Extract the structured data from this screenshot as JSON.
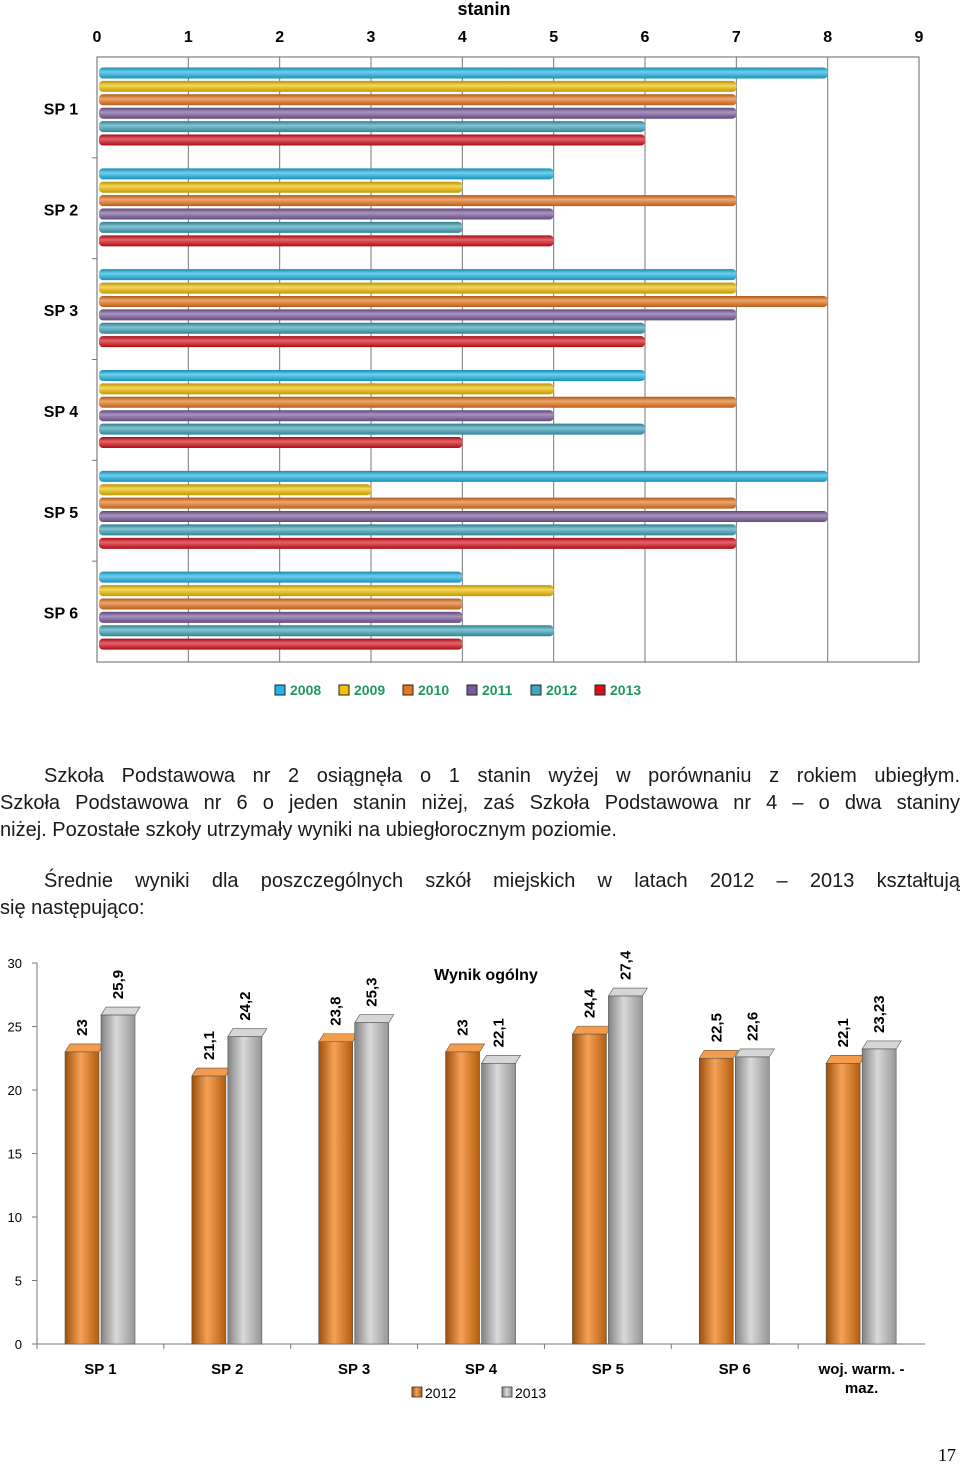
{
  "chart_data": [
    {
      "type": "bar",
      "orientation": "horizontal",
      "title": "stanin",
      "categories": [
        "SP 1",
        "SP 2",
        "SP 3",
        "SP 4",
        "SP 5",
        "SP 6"
      ],
      "x_ticks": [
        "0",
        "1",
        "2",
        "3",
        "4",
        "5",
        "6",
        "7",
        "8",
        "9"
      ],
      "xlim": [
        0,
        9
      ],
      "grid": true,
      "legend": "bottom",
      "series": [
        {
          "name": "2008",
          "color": "#1fb6e8",
          "values": [
            8,
            5,
            7,
            6,
            8,
            4
          ]
        },
        {
          "name": "2009",
          "color": "#f2c200",
          "values": [
            7,
            4,
            7,
            5,
            3,
            5
          ]
        },
        {
          "name": "2010",
          "color": "#e8761e",
          "values": [
            7,
            7,
            8,
            7,
            7,
            4
          ]
        },
        {
          "name": "2011",
          "color": "#7a5c9e",
          "values": [
            7,
            5,
            7,
            5,
            8,
            4
          ]
        },
        {
          "name": "2012",
          "color": "#3fa6bd",
          "values": [
            6,
            4,
            6,
            6,
            7,
            5
          ]
        },
        {
          "name": "2013",
          "color": "#d8101a",
          "values": [
            6,
            5,
            6,
            4,
            7,
            4
          ]
        }
      ]
    },
    {
      "type": "bar",
      "title": "Wynik ogólny",
      "categories": [
        "SP 1",
        "SP 2",
        "SP 3",
        "SP 4",
        "SP 5",
        "SP 6",
        "woj. warm. - maz."
      ],
      "y_ticks": [
        "0",
        "5",
        "10",
        "15",
        "20",
        "25",
        "30"
      ],
      "ylim": [
        0,
        30
      ],
      "grid": false,
      "legend": "bottom",
      "series": [
        {
          "name": "2012",
          "color": "#f07a10",
          "values": [
            23,
            21.1,
            23.8,
            23,
            24.4,
            22.5,
            22.1
          ],
          "labels": [
            "23",
            "21,1",
            "23,8",
            "23",
            "24,4",
            "22,5",
            "22,1"
          ]
        },
        {
          "name": "2013",
          "color": "#c8c8c8",
          "values": [
            25.9,
            24.2,
            25.3,
            22.1,
            27.4,
            22.6,
            23.23
          ],
          "labels": [
            "25,9",
            "24,2",
            "25,3",
            "22,1",
            "27,4",
            "22,6",
            "23,23"
          ]
        }
      ]
    }
  ],
  "text": {
    "para1_line1": "Szkoła Podstawowa nr 2 osiągnęła o 1 stanin wyżej w porównaniu z rokiem ubiegłym.",
    "para1_line2": "Szkoła Podstawowa nr 6 o jeden stanin niżej, zaś Szkoła Podstawowa nr 4 – o dwa staniny",
    "para1_line3": "niżej. Pozostałe szkoły utrzymały wyniki na ubiegłorocznym poziomie.",
    "para2_line1": "Średnie wyniki dla poszczególnych szkół miejskich w latach 2012 – 2013 kształtują",
    "para2_line2": "się następująco:",
    "page_number": "17"
  }
}
